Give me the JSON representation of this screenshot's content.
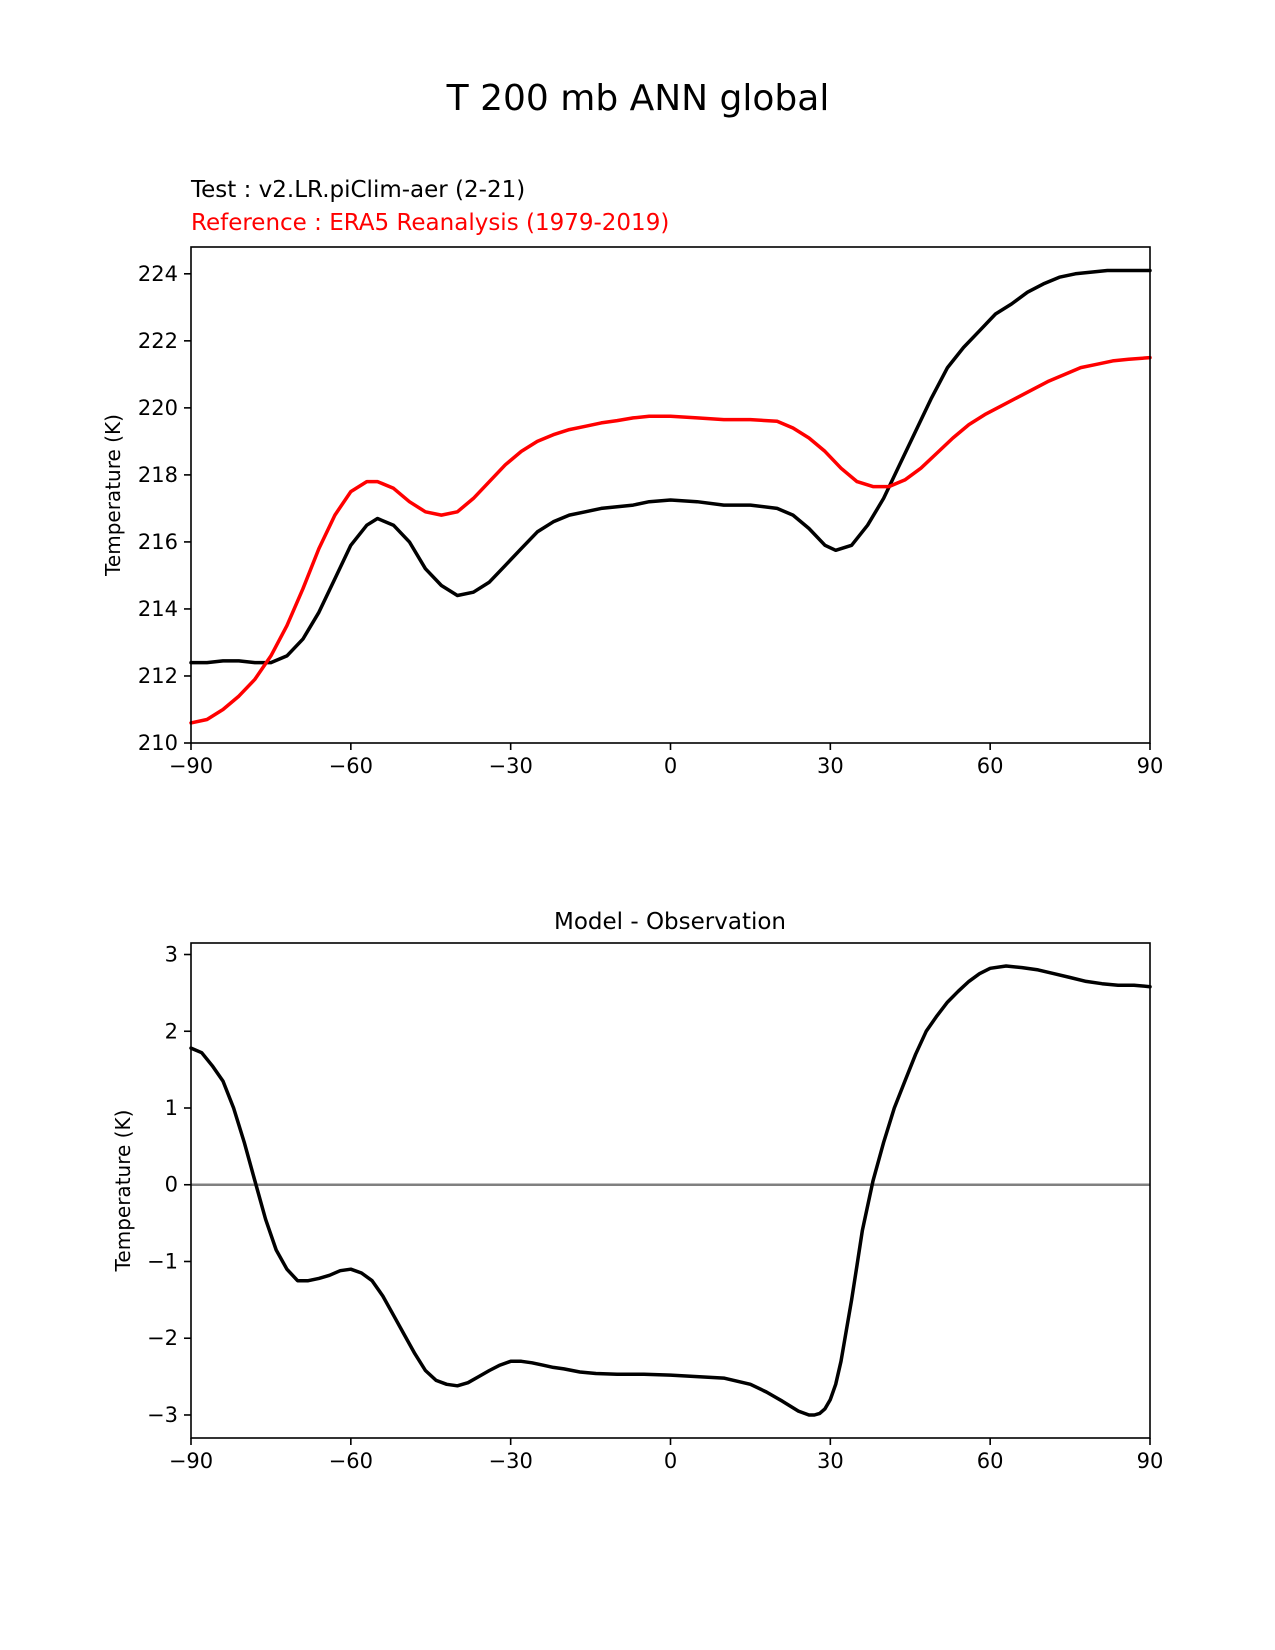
{
  "figure": {
    "suptitle": "T 200 mb ANN global"
  },
  "top_panel": {
    "test_label": "Test : v2.LR.piClim-aer (2-21)",
    "reference_label": "Reference : ERA5 Reanalysis (1979-2019)"
  },
  "bottom_panel": {
    "title": "Model - Observation"
  },
  "colors": {
    "test": "#000000",
    "reference": "#ff0000",
    "zero_line": "#808080"
  },
  "chart_data": [
    {
      "type": "line",
      "title": "",
      "xlabel": "",
      "ylabel": "Temperature (K)",
      "xlim": [
        -90,
        90
      ],
      "ylim": [
        210,
        224.8
      ],
      "x_ticks": [
        -90,
        -60,
        -30,
        0,
        30,
        60,
        90
      ],
      "x_tick_labels": [
        "−90",
        "−60",
        "−30",
        "0",
        "30",
        "60",
        "90"
      ],
      "y_ticks": [
        210,
        212,
        214,
        216,
        218,
        220,
        222,
        224
      ],
      "y_tick_labels": [
        "210",
        "212",
        "214",
        "216",
        "218",
        "220",
        "222",
        "224"
      ],
      "grid": false,
      "series": [
        {
          "name": "Test : v2.LR.piClim-aer (2-21)",
          "color": "#000000",
          "x": [
            -90,
            -87,
            -84,
            -81,
            -78,
            -75,
            -72,
            -69,
            -66,
            -63,
            -60,
            -57,
            -55,
            -52,
            -49,
            -46,
            -43,
            -40,
            -37,
            -34,
            -31,
            -28,
            -25,
            -22,
            -19,
            -16,
            -13,
            -10,
            -7,
            -4,
            0,
            5,
            10,
            15,
            20,
            23,
            26,
            29,
            31,
            34,
            37,
            40,
            43,
            46,
            49,
            52,
            55,
            58,
            61,
            64,
            67,
            70,
            73,
            76,
            79,
            82,
            85,
            88,
            90
          ],
          "y": [
            212.4,
            212.4,
            212.45,
            212.45,
            212.4,
            212.4,
            212.6,
            213.1,
            213.9,
            214.9,
            215.9,
            216.5,
            216.7,
            216.5,
            216.0,
            215.2,
            214.7,
            214.4,
            214.5,
            214.8,
            215.3,
            215.8,
            216.3,
            216.6,
            216.8,
            216.9,
            217.0,
            217.05,
            217.1,
            217.2,
            217.25,
            217.2,
            217.1,
            217.1,
            217.0,
            216.8,
            216.4,
            215.9,
            215.75,
            215.9,
            216.5,
            217.3,
            218.3,
            219.3,
            220.3,
            221.2,
            221.8,
            222.3,
            222.8,
            223.1,
            223.45,
            223.7,
            223.9,
            224.0,
            224.05,
            224.1,
            224.1,
            224.1,
            224.1
          ]
        },
        {
          "name": "Reference : ERA5 Reanalysis (1979-2019)",
          "color": "#ff0000",
          "x": [
            -90,
            -87,
            -84,
            -81,
            -78,
            -75,
            -72,
            -69,
            -66,
            -63,
            -60,
            -57,
            -55,
            -52,
            -49,
            -46,
            -43,
            -40,
            -37,
            -34,
            -31,
            -28,
            -25,
            -22,
            -19,
            -16,
            -13,
            -10,
            -7,
            -4,
            0,
            5,
            10,
            15,
            20,
            23,
            26,
            29,
            32,
            35,
            38,
            41,
            44,
            47,
            50,
            53,
            56,
            59,
            62,
            65,
            68,
            71,
            74,
            77,
            80,
            83,
            86,
            90
          ],
          "y": [
            210.6,
            210.7,
            211.0,
            211.4,
            211.9,
            212.6,
            213.5,
            214.6,
            215.8,
            216.8,
            217.5,
            217.8,
            217.8,
            217.6,
            217.2,
            216.9,
            216.8,
            216.9,
            217.3,
            217.8,
            218.3,
            218.7,
            219.0,
            219.2,
            219.35,
            219.45,
            219.55,
            219.62,
            219.7,
            219.75,
            219.75,
            219.7,
            219.65,
            219.65,
            219.6,
            219.4,
            219.1,
            218.7,
            218.2,
            217.8,
            217.65,
            217.65,
            217.85,
            218.2,
            218.65,
            219.1,
            219.5,
            219.8,
            220.05,
            220.3,
            220.55,
            220.8,
            221.0,
            221.2,
            221.3,
            221.4,
            221.45,
            221.5
          ]
        }
      ]
    },
    {
      "type": "line",
      "title": "Model - Observation",
      "xlabel": "",
      "ylabel": "Temperature (K)",
      "xlim": [
        -90,
        90
      ],
      "ylim": [
        -3.3,
        3.15
      ],
      "x_ticks": [
        -90,
        -60,
        -30,
        0,
        30,
        60,
        90
      ],
      "x_tick_labels": [
        "−90",
        "−60",
        "−30",
        "0",
        "30",
        "60",
        "90"
      ],
      "y_ticks": [
        3,
        2,
        1,
        0,
        -1,
        -2,
        -3
      ],
      "y_tick_labels": [
        "3",
        "2",
        "1",
        "0",
        "−1",
        "−2",
        "−3"
      ],
      "grid": false,
      "zero_line": 0,
      "series": [
        {
          "name": "Model - Observation",
          "color": "#000000",
          "x": [
            -90,
            -88,
            -86,
            -84,
            -82,
            -80,
            -78,
            -76,
            -74,
            -72,
            -70,
            -68,
            -66,
            -64,
            -62,
            -60,
            -58,
            -56,
            -54,
            -52,
            -50,
            -48,
            -46,
            -44,
            -42,
            -40,
            -38,
            -36,
            -34,
            -32,
            -30,
            -28,
            -26,
            -24,
            -22,
            -20,
            -17,
            -14,
            -10,
            -5,
            0,
            5,
            10,
            15,
            18,
            21,
            24,
            26,
            27,
            28,
            29,
            30,
            31,
            32,
            33,
            34,
            35,
            36,
            38,
            40,
            42,
            44,
            46,
            48,
            50,
            52,
            54,
            56,
            58,
            60,
            63,
            66,
            69,
            72,
            75,
            78,
            81,
            84,
            87,
            90
          ],
          "y": [
            1.78,
            1.72,
            1.55,
            1.35,
            1.0,
            0.55,
            0.05,
            -0.45,
            -0.85,
            -1.1,
            -1.25,
            -1.25,
            -1.22,
            -1.18,
            -1.12,
            -1.1,
            -1.15,
            -1.25,
            -1.45,
            -1.7,
            -1.95,
            -2.2,
            -2.42,
            -2.55,
            -2.6,
            -2.62,
            -2.58,
            -2.5,
            -2.42,
            -2.35,
            -2.3,
            -2.3,
            -2.32,
            -2.35,
            -2.38,
            -2.4,
            -2.44,
            -2.46,
            -2.47,
            -2.47,
            -2.48,
            -2.5,
            -2.52,
            -2.6,
            -2.7,
            -2.82,
            -2.95,
            -3.0,
            -3.0,
            -2.98,
            -2.92,
            -2.8,
            -2.6,
            -2.3,
            -1.9,
            -1.5,
            -1.05,
            -0.6,
            0.05,
            0.55,
            1.0,
            1.35,
            1.7,
            2.0,
            2.2,
            2.38,
            2.52,
            2.65,
            2.75,
            2.82,
            2.85,
            2.83,
            2.8,
            2.75,
            2.7,
            2.65,
            2.62,
            2.6,
            2.6,
            2.58
          ]
        }
      ]
    }
  ]
}
